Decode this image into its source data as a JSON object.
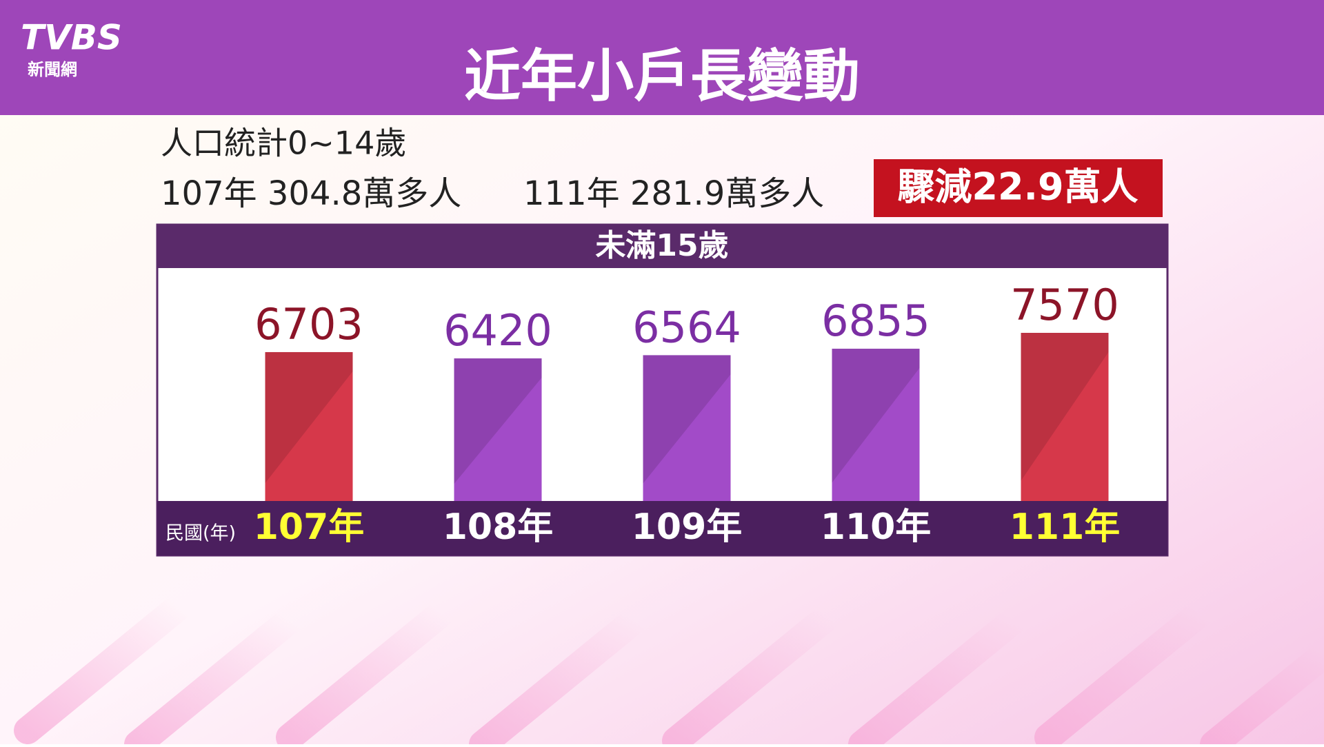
{
  "header": {
    "logo": "TVBS",
    "logo_sub": "新聞網",
    "title": "近年小戶長變動"
  },
  "summary": {
    "line1": "人口統計0~14歲",
    "stat1": "107年 304.8萬多人",
    "stat2": "111年 281.9萬多人",
    "highlight": "驟減22.9萬人"
  },
  "chart_data": {
    "type": "bar",
    "title": "未滿15歲",
    "x_label": "民國(年)",
    "categories": [
      "107年",
      "108年",
      "109年",
      "110年",
      "111年"
    ],
    "values": [
      6703,
      6420,
      6564,
      6855,
      7570
    ],
    "colors": [
      "#d6384a",
      "#a24bc8",
      "#a24bc8",
      "#a24bc8",
      "#d6384a"
    ],
    "label_colors": [
      "#8c1428",
      "#7b2ea3",
      "#7b2ea3",
      "#7b2ea3",
      "#8c1428"
    ],
    "category_colors": [
      "#ffff33",
      "#ffffff",
      "#ffffff",
      "#ffffff",
      "#ffff33"
    ]
  }
}
